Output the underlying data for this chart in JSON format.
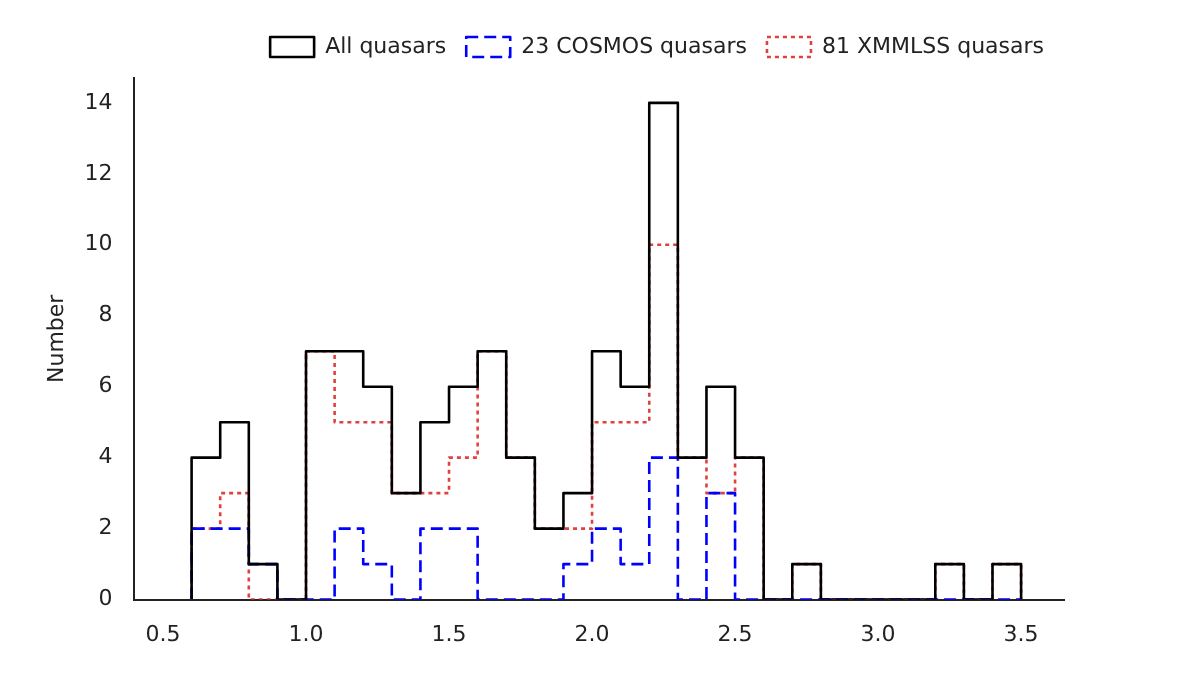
{
  "chart_data": {
    "type": "histogram",
    "ylabel": "Number",
    "bins": [
      0.6,
      0.7,
      0.8,
      0.9,
      1.0,
      1.1,
      1.2,
      1.3,
      1.4,
      1.5,
      1.6,
      1.7,
      1.8,
      1.9,
      2.0,
      2.1,
      2.2,
      2.3,
      2.4,
      2.5,
      2.6,
      2.7,
      2.8,
      2.9,
      3.0,
      3.1,
      3.2,
      3.3,
      3.4,
      3.5
    ],
    "series": [
      {
        "name": "All quasars",
        "color": "#000000",
        "line_style": "solid",
        "values": [
          4,
          5,
          1,
          0,
          7,
          7,
          6,
          3,
          5,
          6,
          7,
          4,
          2,
          3,
          7,
          6,
          14,
          4,
          6,
          4,
          0,
          1,
          0,
          0,
          0,
          0,
          1,
          0,
          1
        ]
      },
      {
        "name": "23 COSMOS quasars",
        "color": "#0000ff",
        "line_style": "dashed",
        "values": [
          2,
          2,
          1,
          0,
          0,
          2,
          1,
          0,
          2,
          2,
          0,
          0,
          0,
          1,
          2,
          1,
          4,
          0,
          3,
          0,
          0,
          0,
          0,
          0,
          0,
          0,
          0,
          0,
          0
        ]
      },
      {
        "name": "81 XMMLSS quasars",
        "color": "#e04040",
        "line_style": "dotted",
        "values": [
          2,
          3,
          0,
          0,
          7,
          5,
          5,
          3,
          3,
          4,
          7,
          4,
          2,
          2,
          5,
          5,
          10,
          4,
          3,
          4,
          0,
          1,
          0,
          0,
          0,
          0,
          1,
          0,
          1
        ]
      }
    ],
    "xlim": [
      0.4,
      3.65
    ],
    "xticks": [
      {
        "value": 0.5,
        "label": "0.5"
      },
      {
        "value": 1.0,
        "label": "1.0"
      },
      {
        "value": 1.5,
        "label": "1.5"
      },
      {
        "value": 2.0,
        "label": "2.0"
      },
      {
        "value": 2.5,
        "label": "2.5"
      },
      {
        "value": 3.0,
        "label": "3.0"
      },
      {
        "value": 3.5,
        "label": "3.5"
      }
    ],
    "ylim": [
      0,
      14.7
    ],
    "yticks": [
      0,
      2,
      4,
      6,
      8,
      10,
      12,
      14
    ],
    "legend": "top right",
    "grid": false
  }
}
